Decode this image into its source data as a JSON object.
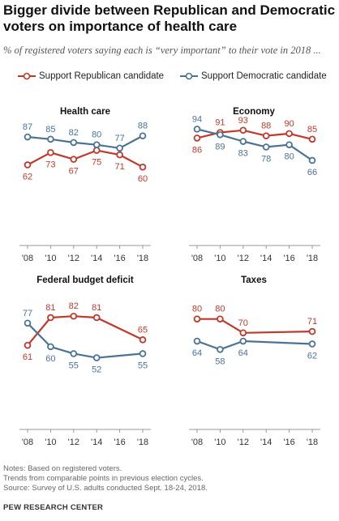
{
  "title": "Bigger divide between Republican and Democratic voters on importance of health care",
  "subtitle": "% of registered voters saying each is “very important” to their vote in 2018 ...",
  "legend": {
    "republican": "Support Republican candidate",
    "democratic": "Support Democratic candidate"
  },
  "colors": {
    "republican": "#c0392b",
    "democratic": "#4a7396",
    "axis": "#999999"
  },
  "notes": {
    "line1": "Notes: Based on registered voters.",
    "line2": "Trends from comparable points in previous election cycles.",
    "line3": "Source: Survey of U.S. adults conducted Sept. 18-24, 2018."
  },
  "source_org": "PEW RESEARCH CENTER",
  "chart_data": [
    {
      "type": "line",
      "title": "Health care",
      "x": [
        "'08",
        "'10",
        "'12",
        "'14",
        "'16",
        "'18"
      ],
      "series": [
        {
          "name": "Support Republican candidate",
          "values": [
            62,
            73,
            67,
            75,
            71,
            60
          ]
        },
        {
          "name": "Support Democratic candidate",
          "values": [
            87,
            85,
            82,
            80,
            77,
            88
          ]
        }
      ]
    },
    {
      "type": "line",
      "title": "Economy",
      "x": [
        "'08",
        "'10",
        "'12",
        "'14",
        "'16",
        "'18"
      ],
      "series": [
        {
          "name": "Support Republican candidate",
          "values": [
            86,
            91,
            93,
            88,
            90,
            85
          ]
        },
        {
          "name": "Support Democratic candidate",
          "values": [
            94,
            89,
            83,
            78,
            80,
            66
          ]
        }
      ]
    },
    {
      "type": "line",
      "title": "Federal budget deficit",
      "x": [
        "'08",
        "'10",
        "'12",
        "'14",
        "'16",
        "'18"
      ],
      "series": [
        {
          "name": "Support Republican candidate",
          "values": [
            61,
            81,
            82,
            81,
            null,
            65
          ]
        },
        {
          "name": "Support Democratic candidate",
          "values": [
            77,
            60,
            55,
            52,
            null,
            55
          ]
        }
      ]
    },
    {
      "type": "line",
      "title": "Taxes",
      "x": [
        "'08",
        "'10",
        "'12",
        "'14",
        "'16",
        "'18"
      ],
      "series": [
        {
          "name": "Support Republican candidate",
          "values": [
            80,
            80,
            70,
            null,
            null,
            71
          ]
        },
        {
          "name": "Support Democratic candidate",
          "values": [
            64,
            58,
            64,
            null,
            null,
            62
          ]
        }
      ]
    }
  ]
}
